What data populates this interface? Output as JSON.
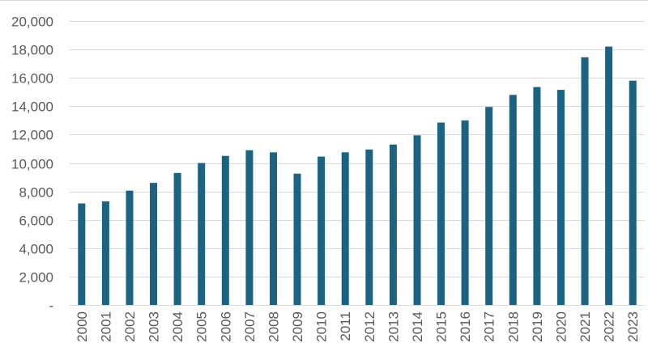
{
  "chart_data": {
    "type": "bar",
    "title": "",
    "xlabel": "",
    "ylabel": "",
    "categories": [
      "2000",
      "2001",
      "2002",
      "2003",
      "2004",
      "2005",
      "2006",
      "2007",
      "2008",
      "2009",
      "2010",
      "2011",
      "2012",
      "2013",
      "2014",
      "2015",
      "2016",
      "2017",
      "2018",
      "2019",
      "2020",
      "2021",
      "2022",
      "2023"
    ],
    "values": [
      7150,
      7300,
      8050,
      8600,
      9300,
      10000,
      10500,
      10900,
      10750,
      9250,
      10450,
      10750,
      10950,
      11300,
      11950,
      12850,
      13000,
      13950,
      14800,
      15350,
      15150,
      17450,
      18200,
      15800
    ],
    "ylim": [
      0,
      20000
    ],
    "y_ticks": [
      {
        "value": 0,
        "label": "-"
      },
      {
        "value": 2000,
        "label": "2,000"
      },
      {
        "value": 4000,
        "label": "4,000"
      },
      {
        "value": 6000,
        "label": "6,000"
      },
      {
        "value": 8000,
        "label": "8,000"
      },
      {
        "value": 10000,
        "label": "10,000"
      },
      {
        "value": 12000,
        "label": "12,000"
      },
      {
        "value": 14000,
        "label": "14,000"
      },
      {
        "value": 16000,
        "label": "16,000"
      },
      {
        "value": 18000,
        "label": "18,000"
      },
      {
        "value": 20000,
        "label": "20,000"
      }
    ],
    "grid": true,
    "legend": "none",
    "bar_color": "#1a6382",
    "grid_color": "#d9d9d9",
    "label_color": "#595959"
  }
}
